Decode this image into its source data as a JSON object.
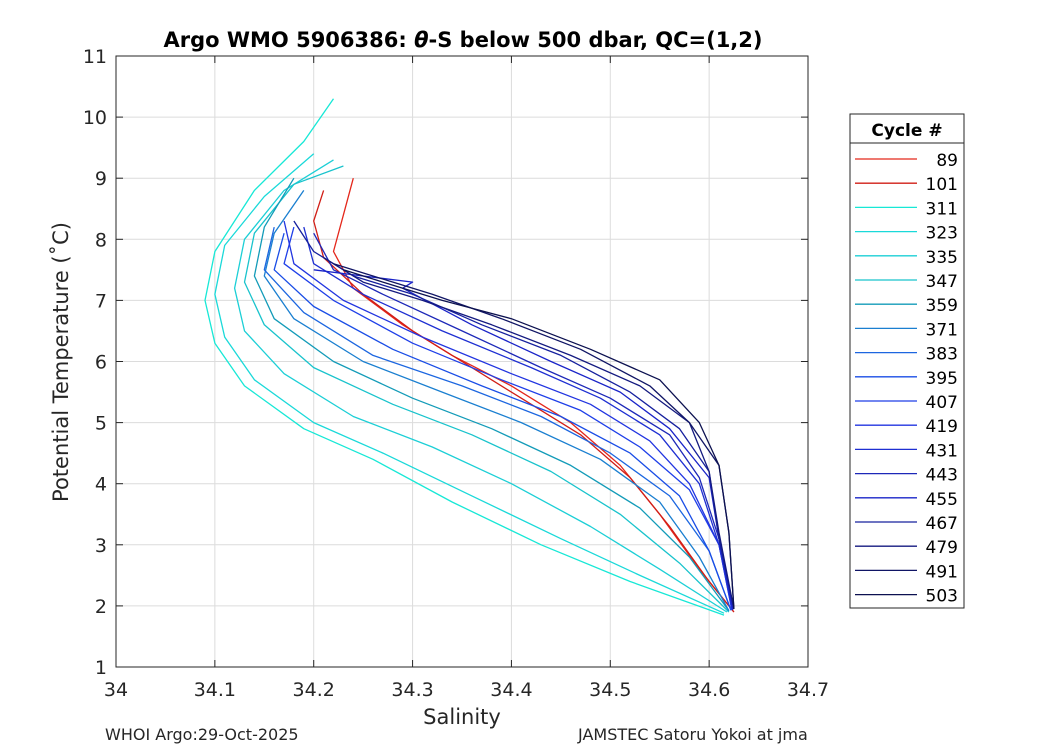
{
  "chart_data": {
    "type": "line",
    "title_prefix": "Argo WMO 5906386: ",
    "title_theta": "θ",
    "title_suffix": "-S below 500 dbar,  QC=(1,2)",
    "xlabel": "Salinity",
    "ylabel": "Potential Temperature (˚C)",
    "xlim": [
      34.0,
      34.7
    ],
    "ylim": [
      1,
      11
    ],
    "xticks": [
      34.0,
      34.1,
      34.2,
      34.3,
      34.4,
      34.5,
      34.6,
      34.7
    ],
    "xtick_labels": [
      "34",
      "34.1",
      "34.2",
      "34.3",
      "34.4",
      "34.5",
      "34.6",
      "34.7"
    ],
    "yticks": [
      1,
      2,
      3,
      4,
      5,
      6,
      7,
      8,
      9,
      10,
      11
    ],
    "ytick_labels": [
      "1",
      "2",
      "3",
      "4",
      "5",
      "6",
      "7",
      "8",
      "9",
      "10",
      "11"
    ],
    "grid": true,
    "legend_title": "Cycle #",
    "legend_position": "outside-right",
    "series": [
      {
        "name": "89",
        "color": "#e4271b",
        "points": [
          [
            34.625,
            1.9
          ],
          [
            34.59,
            2.6
          ],
          [
            34.55,
            3.5
          ],
          [
            34.51,
            4.3
          ],
          [
            34.46,
            5.0
          ],
          [
            34.4,
            5.6
          ],
          [
            34.34,
            6.1
          ],
          [
            34.29,
            6.6
          ],
          [
            34.24,
            7.2
          ],
          [
            34.22,
            7.8
          ],
          [
            34.23,
            8.4
          ],
          [
            34.24,
            9.0
          ]
        ]
      },
      {
        "name": "101",
        "color": "#d11e16",
        "points": [
          [
            34.625,
            1.9
          ],
          [
            34.6,
            2.4
          ],
          [
            34.56,
            3.3
          ],
          [
            34.52,
            4.1
          ],
          [
            34.47,
            4.8
          ],
          [
            34.41,
            5.4
          ],
          [
            34.35,
            6.0
          ],
          [
            34.3,
            6.5
          ],
          [
            34.25,
            7.1
          ],
          [
            34.21,
            7.7
          ],
          [
            34.2,
            8.3
          ],
          [
            34.21,
            8.8
          ]
        ]
      },
      {
        "name": "311",
        "color": "#17e8d6",
        "points": [
          [
            34.615,
            1.85
          ],
          [
            34.52,
            2.4
          ],
          [
            34.43,
            3.0
          ],
          [
            34.34,
            3.7
          ],
          [
            34.26,
            4.4
          ],
          [
            34.19,
            4.9
          ],
          [
            34.13,
            5.6
          ],
          [
            34.1,
            6.3
          ],
          [
            34.09,
            7.0
          ],
          [
            34.1,
            7.8
          ],
          [
            34.14,
            8.8
          ],
          [
            34.19,
            9.6
          ],
          [
            34.22,
            10.3
          ]
        ]
      },
      {
        "name": "323",
        "color": "#1ad9d9",
        "points": [
          [
            34.615,
            1.88
          ],
          [
            34.53,
            2.5
          ],
          [
            34.45,
            3.1
          ],
          [
            34.36,
            3.8
          ],
          [
            34.27,
            4.5
          ],
          [
            34.2,
            5.0
          ],
          [
            34.14,
            5.7
          ],
          [
            34.11,
            6.4
          ],
          [
            34.1,
            7.1
          ],
          [
            34.11,
            7.9
          ],
          [
            34.15,
            8.7
          ],
          [
            34.2,
            9.4
          ]
        ]
      },
      {
        "name": "335",
        "color": "#1ccfd6",
        "points": [
          [
            34.618,
            1.9
          ],
          [
            34.55,
            2.6
          ],
          [
            34.48,
            3.3
          ],
          [
            34.4,
            4.0
          ],
          [
            34.32,
            4.6
          ],
          [
            34.24,
            5.1
          ],
          [
            34.17,
            5.8
          ],
          [
            34.13,
            6.5
          ],
          [
            34.12,
            7.2
          ],
          [
            34.13,
            8.0
          ],
          [
            34.17,
            8.8
          ],
          [
            34.22,
            9.3
          ]
        ]
      },
      {
        "name": "347",
        "color": "#19c3cc",
        "points": [
          [
            34.62,
            1.9
          ],
          [
            34.57,
            2.7
          ],
          [
            34.51,
            3.5
          ],
          [
            34.44,
            4.2
          ],
          [
            34.36,
            4.8
          ],
          [
            34.28,
            5.3
          ],
          [
            34.2,
            5.9
          ],
          [
            34.15,
            6.6
          ],
          [
            34.13,
            7.3
          ],
          [
            34.14,
            8.1
          ],
          [
            34.18,
            8.9
          ],
          [
            34.23,
            9.2
          ]
        ]
      },
      {
        "name": "359",
        "color": "#139bb8",
        "points": [
          [
            34.62,
            1.92
          ],
          [
            34.58,
            2.8
          ],
          [
            34.53,
            3.6
          ],
          [
            34.46,
            4.3
          ],
          [
            34.38,
            4.9
          ],
          [
            34.3,
            5.4
          ],
          [
            34.22,
            6.0
          ],
          [
            34.16,
            6.7
          ],
          [
            34.14,
            7.4
          ],
          [
            34.15,
            8.2
          ],
          [
            34.18,
            9.0
          ]
        ]
      },
      {
        "name": "371",
        "color": "#1a7fd0",
        "points": [
          [
            34.62,
            1.92
          ],
          [
            34.59,
            2.8
          ],
          [
            34.55,
            3.7
          ],
          [
            34.49,
            4.4
          ],
          [
            34.41,
            5.0
          ],
          [
            34.33,
            5.5
          ],
          [
            34.25,
            6.0
          ],
          [
            34.18,
            6.7
          ],
          [
            34.15,
            7.4
          ],
          [
            34.16,
            8.1
          ],
          [
            34.19,
            8.8
          ]
        ]
      },
      {
        "name": "383",
        "color": "#1c66e0",
        "points": [
          [
            34.622,
            1.93
          ],
          [
            34.6,
            2.9
          ],
          [
            34.56,
            3.8
          ],
          [
            34.5,
            4.5
          ],
          [
            34.43,
            5.1
          ],
          [
            34.35,
            5.6
          ],
          [
            34.26,
            6.1
          ],
          [
            34.19,
            6.8
          ],
          [
            34.15,
            7.5
          ],
          [
            34.16,
            8.2
          ]
        ]
      },
      {
        "name": "395",
        "color": "#1a4de6",
        "points": [
          [
            34.622,
            1.93
          ],
          [
            34.6,
            2.9
          ],
          [
            34.57,
            3.8
          ],
          [
            34.52,
            4.5
          ],
          [
            34.45,
            5.1
          ],
          [
            34.37,
            5.6
          ],
          [
            34.28,
            6.2
          ],
          [
            34.2,
            6.9
          ],
          [
            34.16,
            7.5
          ],
          [
            34.17,
            8.1
          ]
        ]
      },
      {
        "name": "407",
        "color": "#1f3fe8",
        "points": [
          [
            34.623,
            1.93
          ],
          [
            34.61,
            3.0
          ],
          [
            34.58,
            3.9
          ],
          [
            34.53,
            4.6
          ],
          [
            34.47,
            5.2
          ],
          [
            34.39,
            5.7
          ],
          [
            34.3,
            6.3
          ],
          [
            34.22,
            7.0
          ],
          [
            34.17,
            7.6
          ],
          [
            34.18,
            8.2
          ]
        ]
      },
      {
        "name": "419",
        "color": "#2235e0",
        "points": [
          [
            34.623,
            1.94
          ],
          [
            34.61,
            3.0
          ],
          [
            34.58,
            4.0
          ],
          [
            34.54,
            4.7
          ],
          [
            34.48,
            5.3
          ],
          [
            34.4,
            5.8
          ],
          [
            34.31,
            6.4
          ],
          [
            34.23,
            7.0
          ],
          [
            34.18,
            7.6
          ],
          [
            34.17,
            8.3
          ]
        ]
      },
      {
        "name": "431",
        "color": "#1e2fd2",
        "points": [
          [
            34.624,
            1.94
          ],
          [
            34.61,
            3.0
          ],
          [
            34.59,
            4.0
          ],
          [
            34.55,
            4.8
          ],
          [
            34.49,
            5.4
          ],
          [
            34.42,
            5.9
          ],
          [
            34.33,
            6.5
          ],
          [
            34.25,
            7.1
          ],
          [
            34.2,
            7.6
          ],
          [
            34.19,
            8.2
          ]
        ]
      },
      {
        "name": "443",
        "color": "#1d28b8",
        "points": [
          [
            34.624,
            1.94
          ],
          [
            34.61,
            3.1
          ],
          [
            34.59,
            4.1
          ],
          [
            34.56,
            4.8
          ],
          [
            34.5,
            5.4
          ],
          [
            34.43,
            5.9
          ],
          [
            34.35,
            6.5
          ],
          [
            34.27,
            7.1
          ],
          [
            34.22,
            7.5
          ],
          [
            34.2,
            8.1
          ]
        ]
      },
      {
        "name": "455",
        "color": "#1a24c8",
        "points": [
          [
            34.624,
            1.95
          ],
          [
            34.61,
            3.1
          ],
          [
            34.6,
            4.1
          ],
          [
            34.56,
            4.9
          ],
          [
            34.51,
            5.5
          ],
          [
            34.44,
            6.0
          ],
          [
            34.36,
            6.6
          ],
          [
            34.29,
            7.2
          ],
          [
            34.3,
            7.3
          ],
          [
            34.25,
            7.4
          ],
          [
            34.2,
            7.5
          ]
        ]
      },
      {
        "name": "467",
        "color": "#16209e",
        "points": [
          [
            34.625,
            1.95
          ],
          [
            34.61,
            3.1
          ],
          [
            34.6,
            4.2
          ],
          [
            34.57,
            4.9
          ],
          [
            34.52,
            5.5
          ],
          [
            34.45,
            6.1
          ],
          [
            34.37,
            6.6
          ],
          [
            34.3,
            7.1
          ],
          [
            34.24,
            7.4
          ],
          [
            34.2,
            7.8
          ],
          [
            34.18,
            8.3
          ]
        ]
      },
      {
        "name": "479",
        "color": "#141a80",
        "points": [
          [
            34.625,
            1.95
          ],
          [
            34.61,
            3.2
          ],
          [
            34.6,
            4.2
          ],
          [
            34.58,
            5.0
          ],
          [
            34.53,
            5.6
          ],
          [
            34.46,
            6.1
          ],
          [
            34.38,
            6.6
          ],
          [
            34.31,
            7.0
          ],
          [
            34.25,
            7.3
          ],
          [
            34.21,
            7.7
          ]
        ]
      },
      {
        "name": "491",
        "color": "#101565",
        "points": [
          [
            34.625,
            1.95
          ],
          [
            34.62,
            3.2
          ],
          [
            34.61,
            4.3
          ],
          [
            34.58,
            5.0
          ],
          [
            34.54,
            5.6
          ],
          [
            34.47,
            6.2
          ],
          [
            34.39,
            6.7
          ],
          [
            34.32,
            7.1
          ],
          [
            34.26,
            7.4
          ],
          [
            34.22,
            7.6
          ]
        ]
      },
      {
        "name": "503",
        "color": "#0c1150",
        "points": [
          [
            34.625,
            1.95
          ],
          [
            34.62,
            3.2
          ],
          [
            34.61,
            4.3
          ],
          [
            34.59,
            5.0
          ],
          [
            34.55,
            5.7
          ],
          [
            34.48,
            6.2
          ],
          [
            34.4,
            6.7
          ],
          [
            34.33,
            7.0
          ],
          [
            34.27,
            7.3
          ],
          [
            34.23,
            7.5
          ]
        ]
      }
    ]
  },
  "footer": {
    "left": "WHOI Argo:29-Oct-2025",
    "right": "JAMSTEC Satoru Yokoi at jma"
  }
}
